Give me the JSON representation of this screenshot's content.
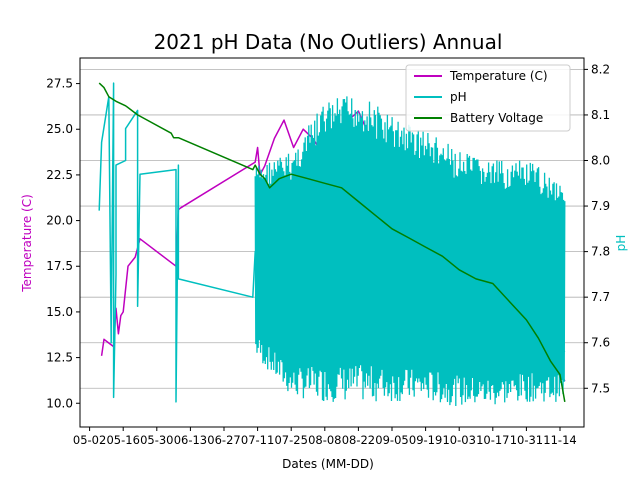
{
  "chart_data": {
    "type": "line",
    "title": "2021 pH Data (No Outliers) Annual",
    "xlabel": "Dates (MM-DD)",
    "ylabel_left": "Temperature (C)",
    "ylabel_right": "pH",
    "x_ticks": [
      "05-02",
      "05-16",
      "05-30",
      "06-13",
      "06-27",
      "07-11",
      "07-25",
      "08-08",
      "08-22",
      "09-05",
      "09-19",
      "10-03",
      "10-17",
      "10-31",
      "11-14"
    ],
    "x_range": [
      "04-28",
      "11-24"
    ],
    "y_left_ticks": [
      10.0,
      12.5,
      15.0,
      17.5,
      20.0,
      22.5,
      25.0,
      27.5
    ],
    "y_left_range": [
      8.7,
      28.9
    ],
    "y_right_ticks": [
      7.5,
      7.6,
      7.7,
      7.8,
      7.9,
      8.0,
      8.1,
      8.2
    ],
    "y_right_range": [
      7.415,
      8.225
    ],
    "grid": "horizontal gridlines on right axis",
    "legend_position": "upper-right",
    "series": [
      {
        "name": "Temperature (C)",
        "axis": "left",
        "color": "#bf00bf",
        "x": [
          "05-07",
          "05-08",
          "05-10",
          "05-12",
          "05-13",
          "05-14",
          "05-15",
          "05-16",
          "05-18",
          "05-21",
          "05-23",
          "06-07",
          "06-08",
          "06-09",
          "07-10",
          "07-11",
          "07-12",
          "07-14",
          "07-18",
          "07-22",
          "07-26",
          "07-30",
          "08-03",
          "08-08",
          "08-13",
          "08-18",
          "08-22",
          "08-27",
          "09-01",
          "09-06",
          "09-12",
          "09-18",
          "09-24",
          "09-30",
          "10-06",
          "10-12",
          "10-18",
          "10-24",
          "10-30",
          "11-05",
          "11-10",
          "11-14",
          "11-16"
        ],
        "y": [
          12.6,
          13.5,
          13.3,
          13.1,
          15.2,
          13.8,
          14.8,
          15.0,
          17.5,
          18.0,
          19.0,
          17.5,
          20.6,
          20.7,
          23.2,
          24.0,
          22.5,
          23.0,
          24.5,
          25.5,
          24.0,
          25.0,
          24.5,
          23.5,
          25.0,
          25.5,
          26.0,
          24.5,
          24.0,
          23.5,
          22.5,
          22.0,
          21.5,
          21.0,
          20.0,
          19.0,
          18.0,
          16.5,
          15.0,
          13.5,
          12.5,
          11.8,
          11.2
        ]
      },
      {
        "name": "pH",
        "axis": "right",
        "color": "#00bfbf",
        "x": [
          "05-06",
          "05-07",
          "05-10",
          "05-11",
          "05-11",
          "05-12",
          "05-12",
          "05-13",
          "05-13",
          "05-17",
          "05-17",
          "05-22",
          "05-22",
          "05-23",
          "06-07",
          "06-07",
          "06-08",
          "06-08",
          "07-09",
          "07-10",
          "07-15",
          "07-20",
          "07-25",
          "07-30",
          "08-04",
          "08-09",
          "08-14",
          "08-19",
          "08-24",
          "08-29",
          "09-03",
          "09-08",
          "09-13",
          "09-18",
          "09-23",
          "09-28",
          "10-03",
          "10-08",
          "10-13",
          "10-18",
          "10-23",
          "10-28",
          "11-02",
          "11-07",
          "11-12",
          "11-16"
        ],
        "y": [
          7.89,
          8.04,
          8.14,
          7.6,
          7.63,
          8.17,
          7.48,
          7.75,
          7.99,
          8.0,
          8.07,
          8.11,
          7.68,
          7.97,
          7.98,
          7.47,
          7.99,
          7.74,
          7.7,
          7.8,
          7.75,
          7.7,
          7.78,
          7.72,
          7.82,
          7.75,
          7.8,
          7.74,
          7.82,
          7.76,
          7.78,
          7.73,
          7.75,
          7.7,
          7.74,
          7.68,
          7.72,
          7.66,
          7.7,
          7.64,
          7.68,
          7.62,
          7.66,
          7.62,
          7.6,
          7.58
        ],
        "noisy_band": {
          "x_start": "07-10",
          "x_end": "11-16",
          "upper": [
            [
              "07-10",
              7.99
            ],
            [
              "07-25",
              8.02
            ],
            [
              "08-08",
              8.13
            ],
            [
              "08-22",
              8.15
            ],
            [
              "09-05",
              8.1
            ],
            [
              "09-19",
              8.07
            ],
            [
              "10-03",
              8.02
            ],
            [
              "10-17",
              8.0
            ],
            [
              "10-31",
              8.0
            ],
            [
              "11-16",
              7.96
            ]
          ],
          "lower": [
            [
              "07-10",
              7.57
            ],
            [
              "07-25",
              7.48
            ],
            [
              "08-08",
              7.47
            ],
            [
              "08-22",
              7.47
            ],
            [
              "09-05",
              7.47
            ],
            [
              "09-19",
              7.47
            ],
            [
              "10-03",
              7.46
            ],
            [
              "10-17",
              7.46
            ],
            [
              "10-31",
              7.47
            ],
            [
              "11-16",
              7.47
            ]
          ]
        }
      },
      {
        "name": "Battery Voltage",
        "axis": "right",
        "color": "#008000",
        "x": [
          "05-06",
          "05-08",
          "05-10",
          "05-13",
          "05-17",
          "05-22",
          "06-05",
          "06-06",
          "06-08",
          "07-09",
          "07-10",
          "07-12",
          "07-14",
          "07-16",
          "07-18",
          "07-20",
          "07-25",
          "08-01",
          "08-08",
          "08-15",
          "08-22",
          "08-29",
          "09-05",
          "09-12",
          "09-19",
          "09-26",
          "10-03",
          "10-10",
          "10-17",
          "10-24",
          "10-31",
          "11-05",
          "11-10",
          "11-14",
          "11-16"
        ],
        "y": [
          8.17,
          8.16,
          8.14,
          8.13,
          8.12,
          8.1,
          8.06,
          8.05,
          8.05,
          7.98,
          7.99,
          7.97,
          7.96,
          7.94,
          7.95,
          7.96,
          7.97,
          7.96,
          7.95,
          7.94,
          7.91,
          7.88,
          7.85,
          7.83,
          7.81,
          7.79,
          7.76,
          7.74,
          7.73,
          7.69,
          7.65,
          7.61,
          7.56,
          7.53,
          7.47
        ]
      }
    ]
  }
}
